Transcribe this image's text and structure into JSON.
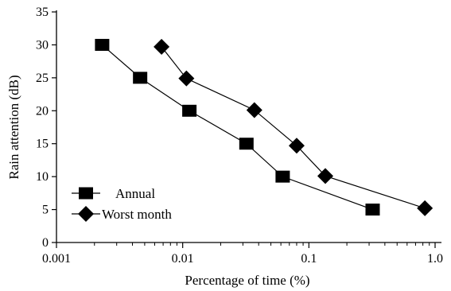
{
  "chart_data": {
    "type": "line",
    "xlabel": "Percentage of time (%)",
    "ylabel": "Rain attention (dB)",
    "xscale": "log",
    "xlim": [
      0.001,
      1.0
    ],
    "ylim": [
      0,
      35
    ],
    "x_ticks": [
      0.001,
      0.01,
      0.1,
      1.0
    ],
    "x_tick_labels": [
      "0.001",
      "0.01",
      "0.1",
      "1.0"
    ],
    "y_ticks": [
      0,
      5,
      10,
      15,
      20,
      25,
      30,
      35
    ],
    "y_tick_labels": [
      "0",
      "5",
      "10",
      "15",
      "20",
      "25",
      "30",
      "35"
    ],
    "grid": false,
    "legend_position": "bottom-left",
    "series": [
      {
        "name": "Annual",
        "marker": "square",
        "color": "#000000",
        "x": [
          0.0023,
          0.0046,
          0.0113,
          0.032,
          0.062,
          0.32
        ],
        "y": [
          30,
          25,
          20,
          15,
          10,
          5
        ]
      },
      {
        "name": "Worst month",
        "marker": "diamond",
        "color": "#000000",
        "x": [
          0.0068,
          0.0107,
          0.037,
          0.08,
          0.135,
          0.83
        ],
        "y": [
          29.7,
          24.9,
          20.1,
          14.7,
          10.1,
          5.2
        ]
      }
    ]
  }
}
